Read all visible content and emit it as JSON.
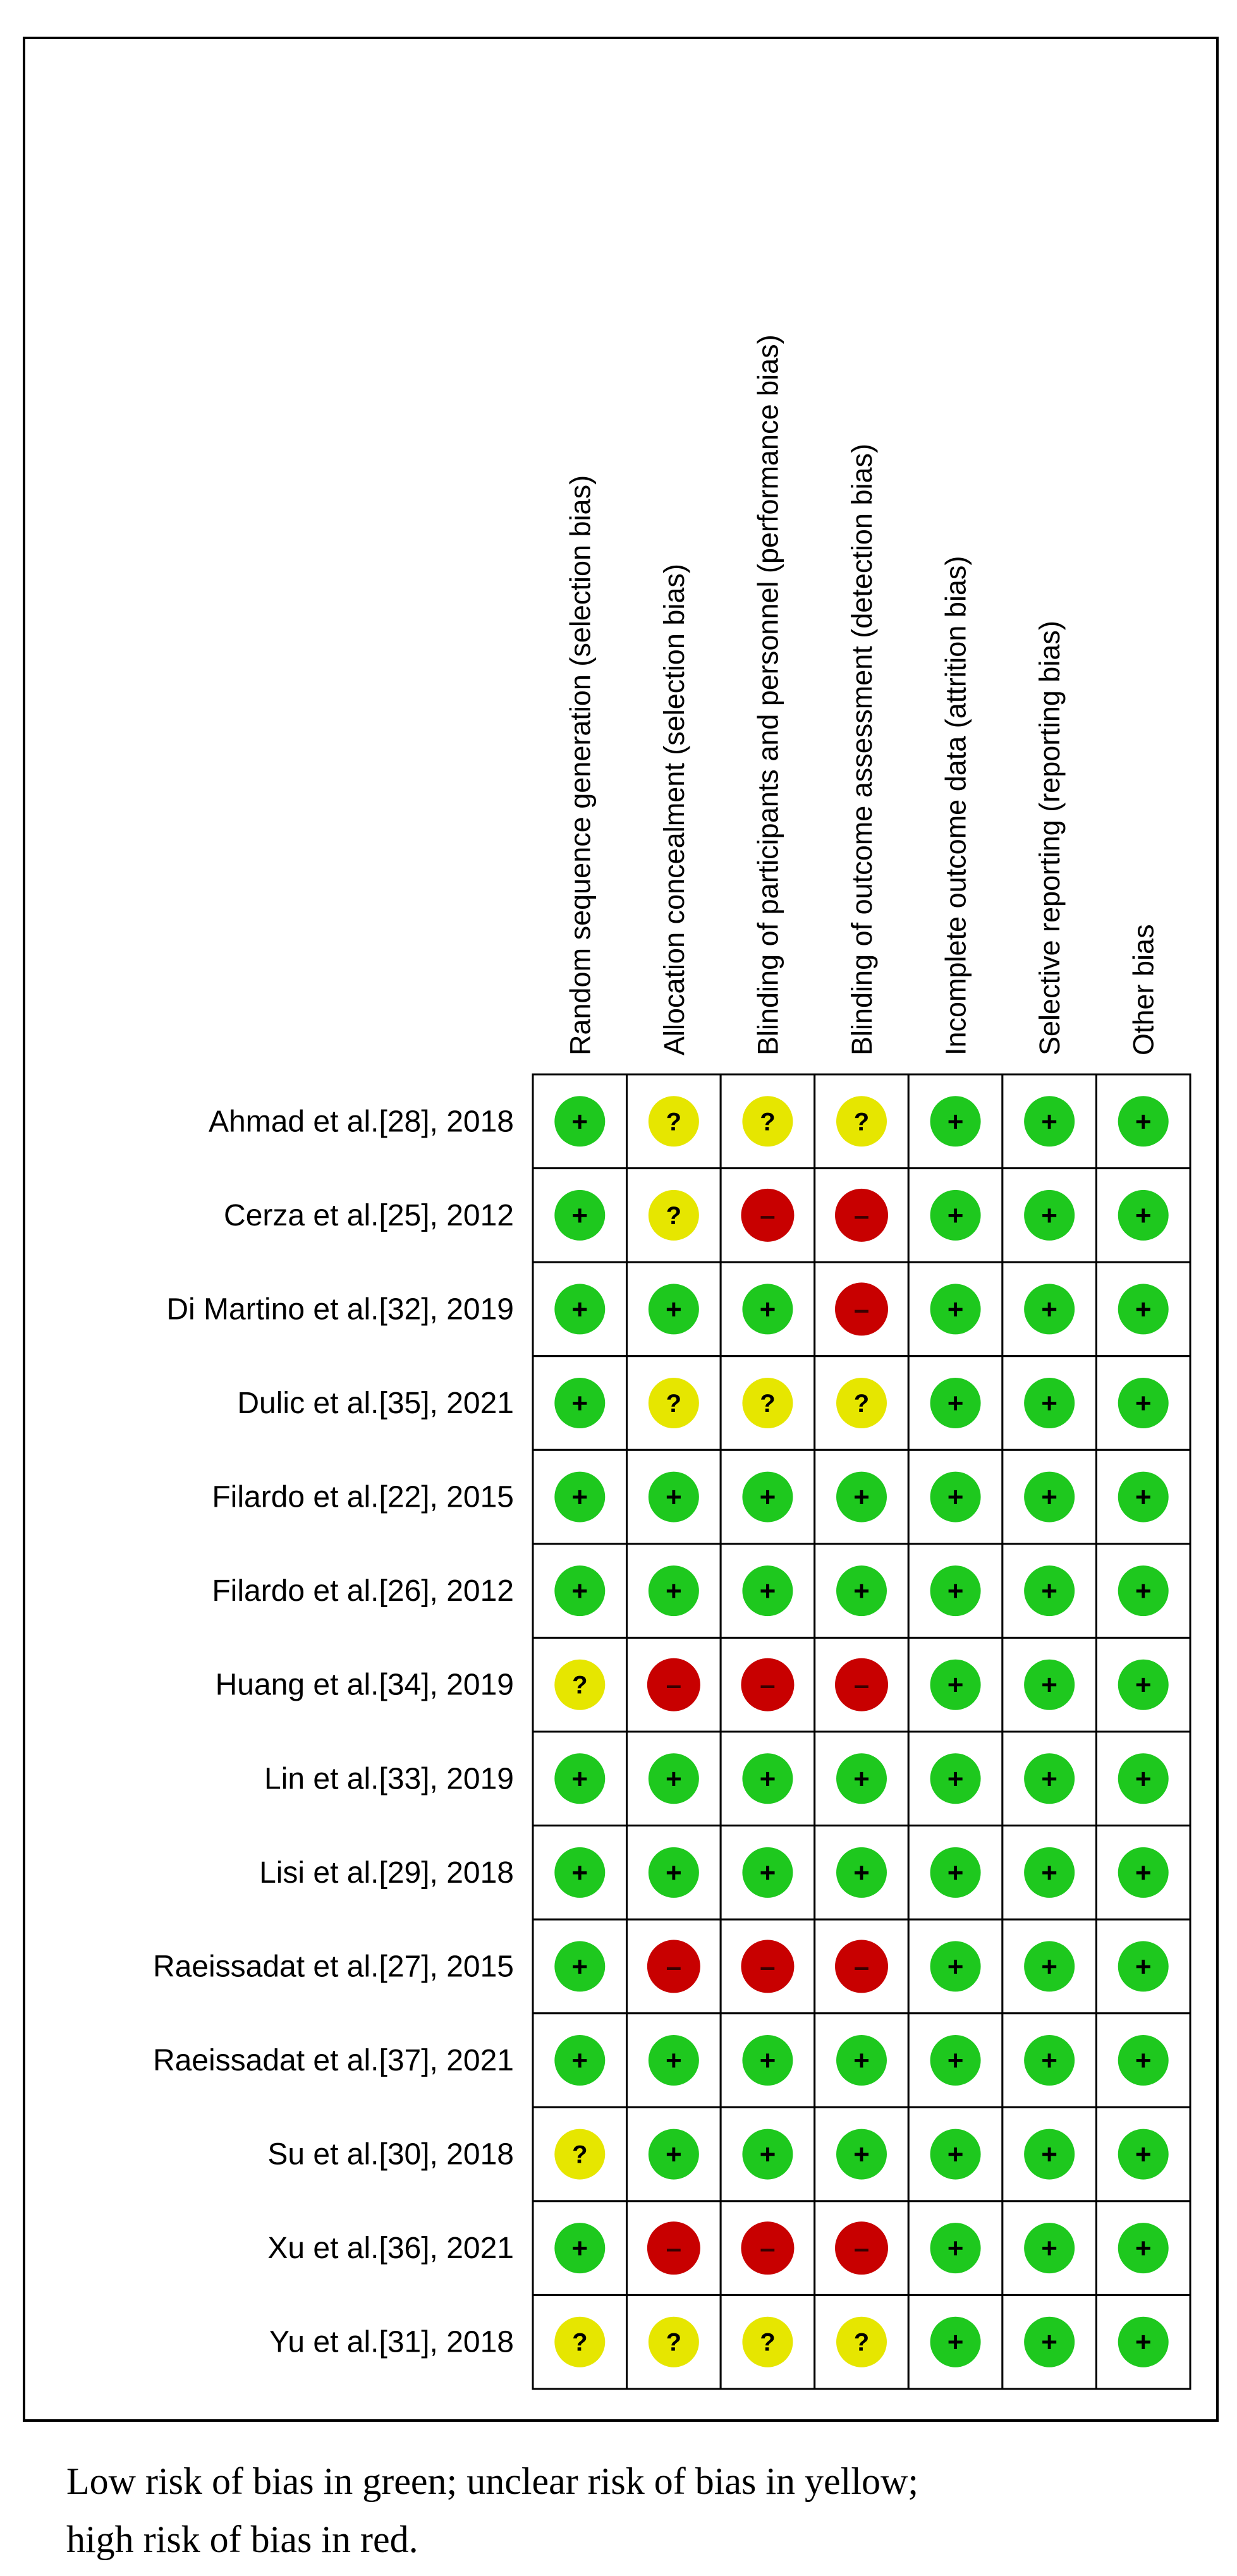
{
  "chart_data": {
    "type": "table",
    "domains": [
      "Random sequence generation (selection bias)",
      "Allocation concealment (selection bias)",
      "Blinding of participants and personnel (performance bias)",
      "Blinding of outcome assessment (detection bias)",
      "Incomplete outcome data (attrition bias)",
      "Selective reporting (reporting bias)",
      "Other bias"
    ],
    "studies": [
      "Ahmad et al.[28], 2018",
      "Cerza et al.[25], 2012",
      "Di Martino et al.[32], 2019",
      "Dulic et al.[35], 2021",
      "Filardo et al.[22], 2015",
      "Filardo et al.[26], 2012",
      "Huang et al.[34], 2019",
      "Lin et al.[33], 2019",
      "Lisi et al.[29], 2018",
      "Raeissadat et al.[27], 2015",
      "Raeissadat et al.[37], 2021",
      "Su et al.[30], 2018",
      "Xu et al.[36], 2021",
      "Yu et al.[31], 2018"
    ],
    "judgements": [
      [
        "low",
        "unclear",
        "unclear",
        "unclear",
        "low",
        "low",
        "low"
      ],
      [
        "low",
        "unclear",
        "high",
        "high",
        "low",
        "low",
        "low"
      ],
      [
        "low",
        "low",
        "low",
        "high",
        "low",
        "low",
        "low"
      ],
      [
        "low",
        "unclear",
        "unclear",
        "unclear",
        "low",
        "low",
        "low"
      ],
      [
        "low",
        "low",
        "low",
        "low",
        "low",
        "low",
        "low"
      ],
      [
        "low",
        "low",
        "low",
        "low",
        "low",
        "low",
        "low"
      ],
      [
        "unclear",
        "high",
        "high",
        "high",
        "low",
        "low",
        "low"
      ],
      [
        "low",
        "low",
        "low",
        "low",
        "low",
        "low",
        "low"
      ],
      [
        "low",
        "low",
        "low",
        "low",
        "low",
        "low",
        "low"
      ],
      [
        "low",
        "high",
        "high",
        "high",
        "low",
        "low",
        "low"
      ],
      [
        "low",
        "low",
        "low",
        "low",
        "low",
        "low",
        "low"
      ],
      [
        "unclear",
        "low",
        "low",
        "low",
        "low",
        "low",
        "low"
      ],
      [
        "low",
        "high",
        "high",
        "high",
        "low",
        "low",
        "low"
      ],
      [
        "unclear",
        "unclear",
        "unclear",
        "unclear",
        "low",
        "low",
        "low"
      ]
    ],
    "legend": {
      "low": {
        "symbol": "+",
        "color": "#1ec81e"
      },
      "unclear": {
        "symbol": "?",
        "color": "#e6e600"
      },
      "high": {
        "symbol": "–",
        "color": "#c80000"
      }
    }
  },
  "caption": {
    "line1": "Low risk of bias in green; unclear risk of bias in yellow;",
    "line2": "high risk of bias in red."
  }
}
